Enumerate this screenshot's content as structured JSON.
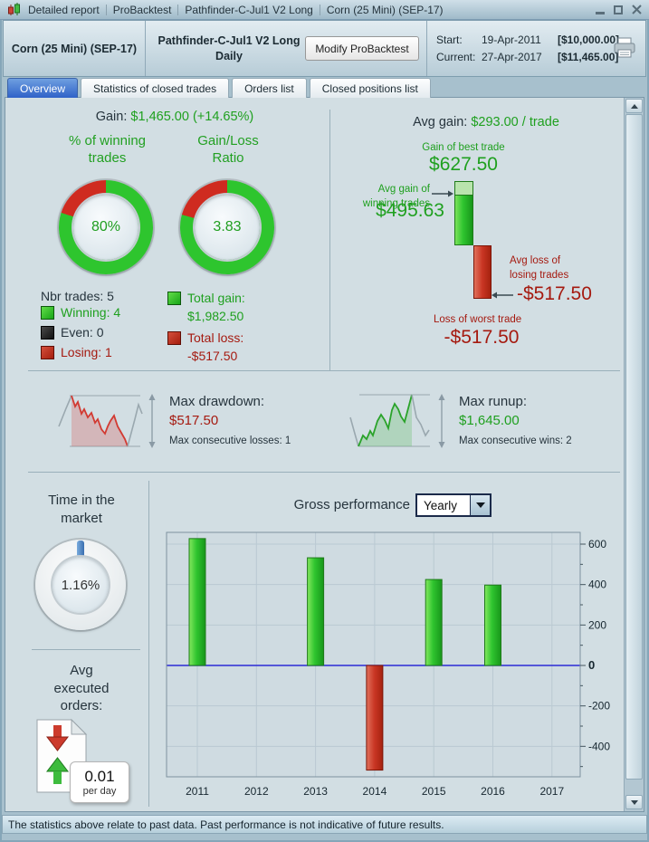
{
  "window": {
    "title_segments": [
      "Detailed report",
      "ProBacktest",
      "Pathfinder-C-Jul1 V2 Long",
      "Corn (25 Mini) (SEP-17)"
    ]
  },
  "header": {
    "instrument": "Corn (25 Mini) (SEP-17)",
    "strategy_name": "Pathfinder-C-Jul1 V2 Long",
    "strategy_timeframe": "Daily",
    "modify_button": "Modify ProBacktest",
    "start_label": "Start:",
    "start_date": "19-Apr-2011",
    "start_amount": "[$10,000.00]",
    "current_label": "Current:",
    "current_date": "27-Apr-2017",
    "current_amount": "[$11,465.00]"
  },
  "tabs": [
    {
      "label": "Overview",
      "active": true
    },
    {
      "label": "Statistics of closed trades",
      "active": false
    },
    {
      "label": "Orders list",
      "active": false
    },
    {
      "label": "Closed positions list",
      "active": false
    }
  ],
  "overview": {
    "gain_label": "Gain:",
    "gain_value": "$1,465.00 (+14.65%)",
    "winning_gauge": {
      "title": "% of winning\ntrades",
      "value": "80%",
      "green_pct": 80
    },
    "ratio_gauge": {
      "title": "Gain/Loss\nRatio",
      "value": "3.83",
      "green_pct": 79.3
    },
    "nbr_trades": "Nbr trades: 5",
    "legend": {
      "winning": "Winning: 4",
      "even": "Even: 0",
      "losing": "Losing: 1"
    },
    "total_gain_label": "Total gain:",
    "total_gain_value": "$1,982.50",
    "total_loss_label": "Total loss:",
    "total_loss_value": "-$517.50",
    "avg_gain_label": "Avg gain:",
    "avg_gain_value": "$293.00 / trade",
    "best_trade_label": "Gain of best trade",
    "best_trade_value": "$627.50",
    "avg_win_label": "Avg gain of\nwinning trades",
    "avg_win_value": "$495.63",
    "avg_loss_label": "Avg loss of\nlosing trades",
    "avg_loss_value": "-$517.50",
    "worst_trade_label": "Loss of worst trade",
    "worst_trade_value": "-$517.50",
    "drawdown": {
      "title": "Max drawdown:",
      "value": "$517.50",
      "sub": "Max consecutive losses: 1"
    },
    "runup": {
      "title": "Max runup:",
      "value": "$1,645.00",
      "sub": "Max consecutive wins: 2"
    },
    "time_gauge": {
      "title": "Time in the\nmarket",
      "value": "1.16%",
      "blue_pct": 1.16
    },
    "gross_label": "Gross performance",
    "period_value": "Yearly",
    "avg_orders": {
      "title": "Avg\nexecuted\norders:",
      "value": "0.01",
      "unit": "per day"
    }
  },
  "colors": {
    "gauge_green": "#2ec52e",
    "gauge_red": "#cf2b20",
    "accent_blue": "#4a86c8",
    "positive_text": "#1fa01f",
    "negative_text": "#a51a10"
  },
  "chart_data": {
    "type": "bar",
    "title": "Gross performance (Yearly)",
    "categories": [
      "2011",
      "2012",
      "2013",
      "2014",
      "2015",
      "2016",
      "2017"
    ],
    "values": [
      627.5,
      0,
      532.5,
      -517.5,
      425,
      397.5,
      0
    ],
    "xlabel": "",
    "ylabel": "",
    "ylim": [
      -550,
      660
    ],
    "yticks": [
      600,
      400,
      200,
      0,
      -200,
      -400
    ],
    "grid": true,
    "legend": "none",
    "y_axis_side": "right",
    "positive_color": "#2fc52f",
    "negative_color": "#c93523",
    "zero_line_color": "#2b2bd5"
  },
  "status_bar": "The statistics above relate to past data. Past performance is not indicative of future results."
}
